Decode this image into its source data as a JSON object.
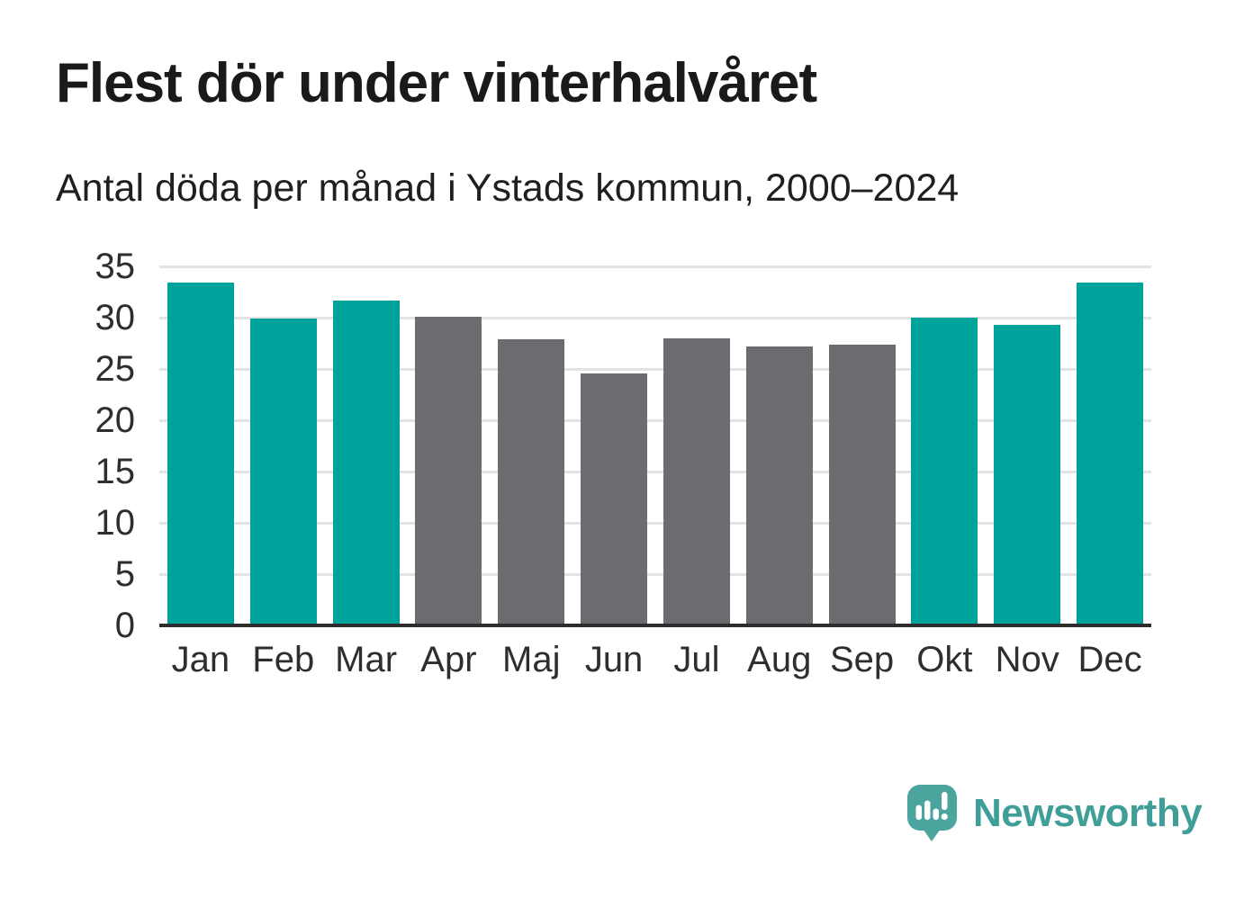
{
  "header": {
    "title": "Flest dör under vinterhalvåret",
    "subtitle": "Antal döda per månad i Ystads kommun, 2000–2024"
  },
  "chart_data": {
    "type": "bar",
    "title": "Flest dör under vinterhalvåret",
    "subtitle": "Antal döda per månad i Ystads kommun, 2000–2024",
    "categories": [
      "Jan",
      "Feb",
      "Mar",
      "Apr",
      "Maj",
      "Jun",
      "Jul",
      "Aug",
      "Sep",
      "Okt",
      "Nov",
      "Dec"
    ],
    "values": [
      33.4,
      29.9,
      31.7,
      30.1,
      27.9,
      24.6,
      28.0,
      27.2,
      27.4,
      30.0,
      29.3,
      33.4
    ],
    "xlabel": "",
    "ylabel": "",
    "ylim": [
      0,
      35
    ],
    "yticks": [
      0,
      5,
      10,
      15,
      20,
      25,
      30,
      35
    ],
    "grid": true,
    "legend": "none",
    "highlighted_categories": [
      "Jan",
      "Feb",
      "Mar",
      "Okt",
      "Nov",
      "Dec"
    ],
    "colors": {
      "highlight": "#00a39b",
      "base": "#6b6b70"
    }
  },
  "logo": {
    "brand": "Newsworthy",
    "icon": "newsworthy-speech-bubble-chart-icon",
    "icon_color": "#4ba59e",
    "text_color": "#3f9f98"
  }
}
